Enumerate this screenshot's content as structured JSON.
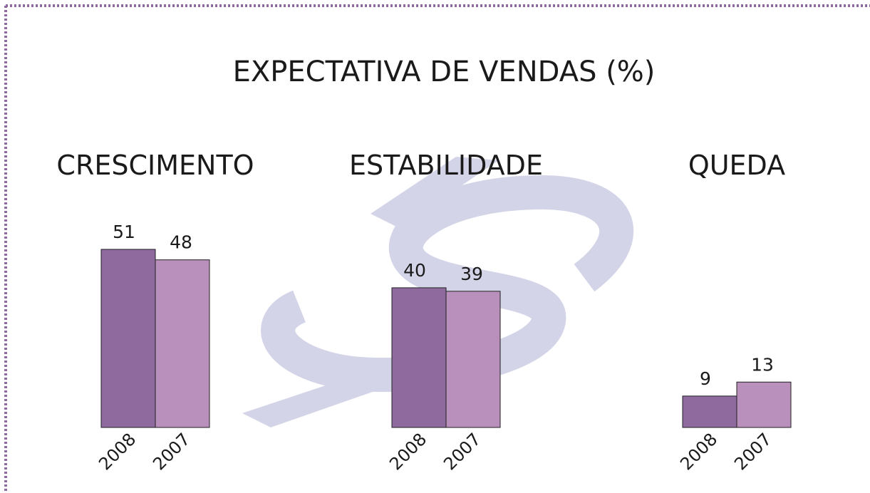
{
  "chart_data": {
    "type": "bar",
    "title": "EXPECTATIVA DE VENDAS (%)",
    "categories": [
      "CRESCIMENTO",
      "ESTABILIDADE",
      "QUEDA"
    ],
    "series": [
      {
        "name": "2008",
        "color": "#8e6a9e",
        "values": [
          51,
          40,
          9
        ]
      },
      {
        "name": "2007",
        "color": "#b98fbb",
        "values": [
          48,
          39,
          13
        ]
      }
    ]
  }
}
